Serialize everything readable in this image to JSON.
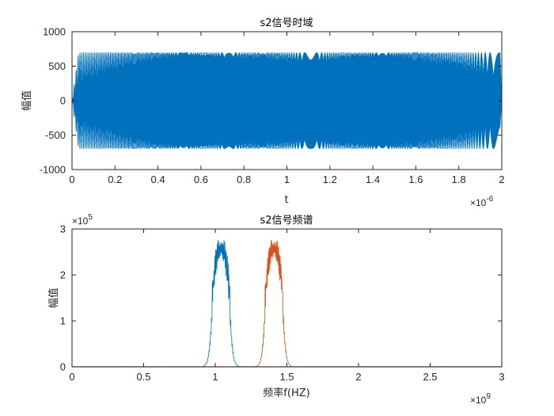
{
  "chart_data": [
    {
      "type": "line",
      "title": "s2信号时域",
      "xlabel": "t",
      "ylabel": "幅值",
      "xlim": [
        0,
        2e-06
      ],
      "ylim": [
        -1000,
        1000
      ],
      "x_ticks": [
        0,
        0.2,
        0.4,
        0.6,
        0.8,
        1,
        1.2,
        1.4,
        1.6,
        1.8,
        2
      ],
      "x_tick_labels": [
        "0",
        "0.2",
        "0.4",
        "0.6",
        "0.8",
        "1",
        "1.2",
        "1.4",
        "1.6",
        "1.8",
        "2"
      ],
      "x_exponent_base": "×10",
      "x_exponent": "-6",
      "y_ticks": [
        -1000,
        -500,
        0,
        500,
        1000
      ],
      "y_tick_labels": [
        "-1000",
        "-500",
        "0",
        "500",
        "1000"
      ],
      "grid": false,
      "series": [
        {
          "color": "#0072BD",
          "amplitude": 700,
          "signal": "chirp",
          "f_start_hz": 1450000000.0,
          "f_end_hz": 1000000000.0
        }
      ]
    },
    {
      "type": "line",
      "title": "s2信号频谱",
      "xlabel": "频率f(HZ)",
      "ylabel": "幅值",
      "xlim": [
        0,
        3000000000.0
      ],
      "ylim": [
        0,
        300000
      ],
      "x_ticks": [
        0,
        0.5,
        1,
        1.5,
        2,
        2.5,
        3
      ],
      "x_tick_labels": [
        "0",
        "0.5",
        "1",
        "1.5",
        "2",
        "2.5",
        "3"
      ],
      "x_exponent_base": "×10",
      "x_exponent": "9",
      "y_ticks": [
        0,
        1,
        2,
        3
      ],
      "y_tick_labels": [
        "0",
        "1",
        "2",
        "3"
      ],
      "y_exponent_base": "×10",
      "y_exponent": "5",
      "grid": false,
      "series": [
        {
          "color": "#0072BD",
          "band_hz": [
            980000000.0,
            1100000000.0
          ],
          "level": 260000,
          "ripple": 30000
        },
        {
          "color": "#D95319",
          "band_hz": [
            1350000000.0,
            1470000000.0
          ],
          "level": 260000,
          "ripple": 30000
        }
      ]
    }
  ]
}
